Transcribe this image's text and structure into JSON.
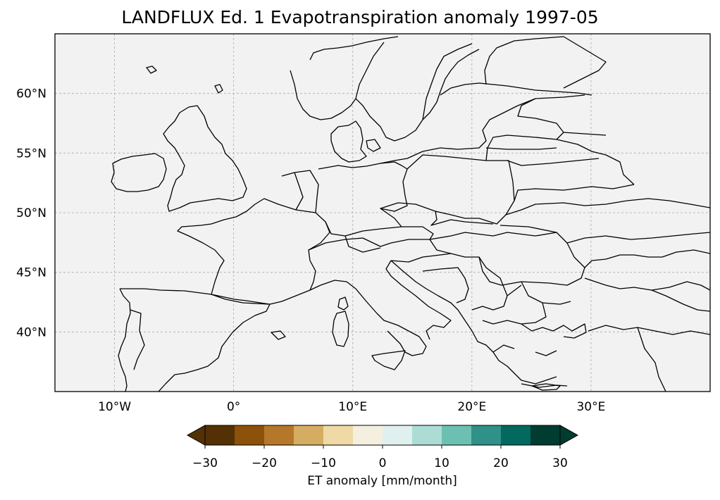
{
  "title": "LANDFLUX Ed. 1 Evapotranspiration anomaly 1997-05",
  "map": {
    "projection": "PlateCarree",
    "lon_range": [
      -15,
      40
    ],
    "lat_range": [
      35,
      65
    ],
    "land_color": "#f2f2f2",
    "coastline_color": "#000000",
    "gridlines": true,
    "lon_ticks": [
      {
        "value": -10,
        "label": "10°W"
      },
      {
        "value": 0,
        "label": "0°"
      },
      {
        "value": 10,
        "label": "10°E"
      },
      {
        "value": 20,
        "label": "20°E"
      },
      {
        "value": 30,
        "label": "30°E"
      }
    ],
    "lat_ticks": [
      {
        "value": 60,
        "label": "60°N"
      },
      {
        "value": 55,
        "label": "55°N"
      },
      {
        "value": 50,
        "label": "50°N"
      },
      {
        "value": 45,
        "label": "45°N"
      },
      {
        "value": 40,
        "label": "40°N"
      }
    ]
  },
  "colorbar": {
    "label": "ET anomaly [mm/month]",
    "min": -30,
    "max": 30,
    "extend": "both",
    "tick_values": [
      -30,
      -20,
      -10,
      0,
      10,
      20,
      30
    ],
    "tick_labels": [
      "−30",
      "−20",
      "−10",
      "0",
      "10",
      "20",
      "30"
    ],
    "under_color": "#543005",
    "over_color": "#003c30",
    "bins": [
      {
        "from": -30,
        "to": -25,
        "color": "#543005"
      },
      {
        "from": -25,
        "to": -20,
        "color": "#8c510a"
      },
      {
        "from": -20,
        "to": -15,
        "color": "#b5782a"
      },
      {
        "from": -15,
        "to": -10,
        "color": "#d5ad62"
      },
      {
        "from": -10,
        "to": -5,
        "color": "#efd9a5"
      },
      {
        "from": -5,
        "to": 0,
        "color": "#f5efdf"
      },
      {
        "from": 0,
        "to": 5,
        "color": "#e0f0ef"
      },
      {
        "from": 5,
        "to": 10,
        "color": "#acdcd4"
      },
      {
        "from": 10,
        "to": 15,
        "color": "#6cc0b2"
      },
      {
        "from": 15,
        "to": 20,
        "color": "#2f9187"
      },
      {
        "from": 20,
        "to": 25,
        "color": "#03685d"
      },
      {
        "from": 25,
        "to": 30,
        "color": "#003c30"
      }
    ]
  }
}
